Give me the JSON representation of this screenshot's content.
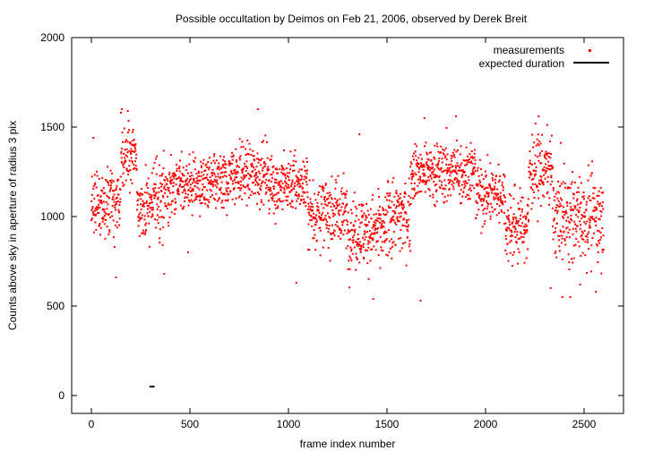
{
  "chart_data": {
    "type": "scatter",
    "title": "Possible occultation by Deimos on Feb 21, 2006, observed by Derek Breit",
    "xlabel": "frame index number",
    "ylabel": "Counts above sky in aperture of radius 3 pix",
    "xlim": [
      -100,
      2700
    ],
    "ylim": [
      -100,
      2000
    ],
    "xticks": [
      0,
      500,
      1000,
      1500,
      2000,
      2500
    ],
    "yticks": [
      0,
      500,
      1000,
      1500,
      2000
    ],
    "grid": false,
    "legend_position": "top-right",
    "series": [
      {
        "name": "measurements",
        "color": "#ff0000",
        "marker": "dot",
        "n_points": 2600,
        "segments": [
          {
            "x_start": 0,
            "x_end": 150,
            "mean": 1070,
            "spread": 120
          },
          {
            "x_start": 150,
            "x_end": 230,
            "mean": 1340,
            "spread": 130
          },
          {
            "x_start": 230,
            "x_end": 320,
            "mean": 1060,
            "spread": 140
          },
          {
            "x_start": 320,
            "x_end": 400,
            "mean": 1120,
            "spread": 140
          },
          {
            "x_start": 400,
            "x_end": 700,
            "mean": 1180,
            "spread": 110
          },
          {
            "x_start": 700,
            "x_end": 900,
            "mean": 1240,
            "spread": 110
          },
          {
            "x_start": 900,
            "x_end": 1100,
            "mean": 1180,
            "spread": 120
          },
          {
            "x_start": 1100,
            "x_end": 1300,
            "mean": 1020,
            "spread": 130
          },
          {
            "x_start": 1300,
            "x_end": 1500,
            "mean": 920,
            "spread": 140
          },
          {
            "x_start": 1500,
            "x_end": 1620,
            "mean": 1000,
            "spread": 150
          },
          {
            "x_start": 1620,
            "x_end": 1950,
            "mean": 1250,
            "spread": 120
          },
          {
            "x_start": 1950,
            "x_end": 2100,
            "mean": 1130,
            "spread": 120
          },
          {
            "x_start": 2100,
            "x_end": 2220,
            "mean": 950,
            "spread": 140
          },
          {
            "x_start": 2220,
            "x_end": 2340,
            "mean": 1260,
            "spread": 140
          },
          {
            "x_start": 2340,
            "x_end": 2600,
            "mean": 1000,
            "spread": 170
          }
        ],
        "extremes": [
          {
            "x": 125,
            "y": 660
          },
          {
            "x": 370,
            "y": 680
          },
          {
            "x": 490,
            "y": 800
          },
          {
            "x": 1040,
            "y": 630
          },
          {
            "x": 1430,
            "y": 540
          },
          {
            "x": 1670,
            "y": 530
          },
          {
            "x": 2330,
            "y": 600
          },
          {
            "x": 2390,
            "y": 550
          },
          {
            "x": 2430,
            "y": 550
          },
          {
            "x": 2480,
            "y": 620
          },
          {
            "x": 2560,
            "y": 580
          },
          {
            "x": 155,
            "y": 1600
          },
          {
            "x": 185,
            "y": 1590
          },
          {
            "x": 845,
            "y": 1600
          },
          {
            "x": 2270,
            "y": 1560
          },
          {
            "x": 1690,
            "y": 1550
          },
          {
            "x": 1850,
            "y": 1560
          },
          {
            "x": 10,
            "y": 1440
          },
          {
            "x": 1360,
            "y": 1460
          }
        ]
      },
      {
        "name": "expected duration",
        "color": "#000000",
        "type": "segment",
        "x": [
          295,
          320
        ],
        "y": [
          50,
          50
        ]
      }
    ]
  }
}
